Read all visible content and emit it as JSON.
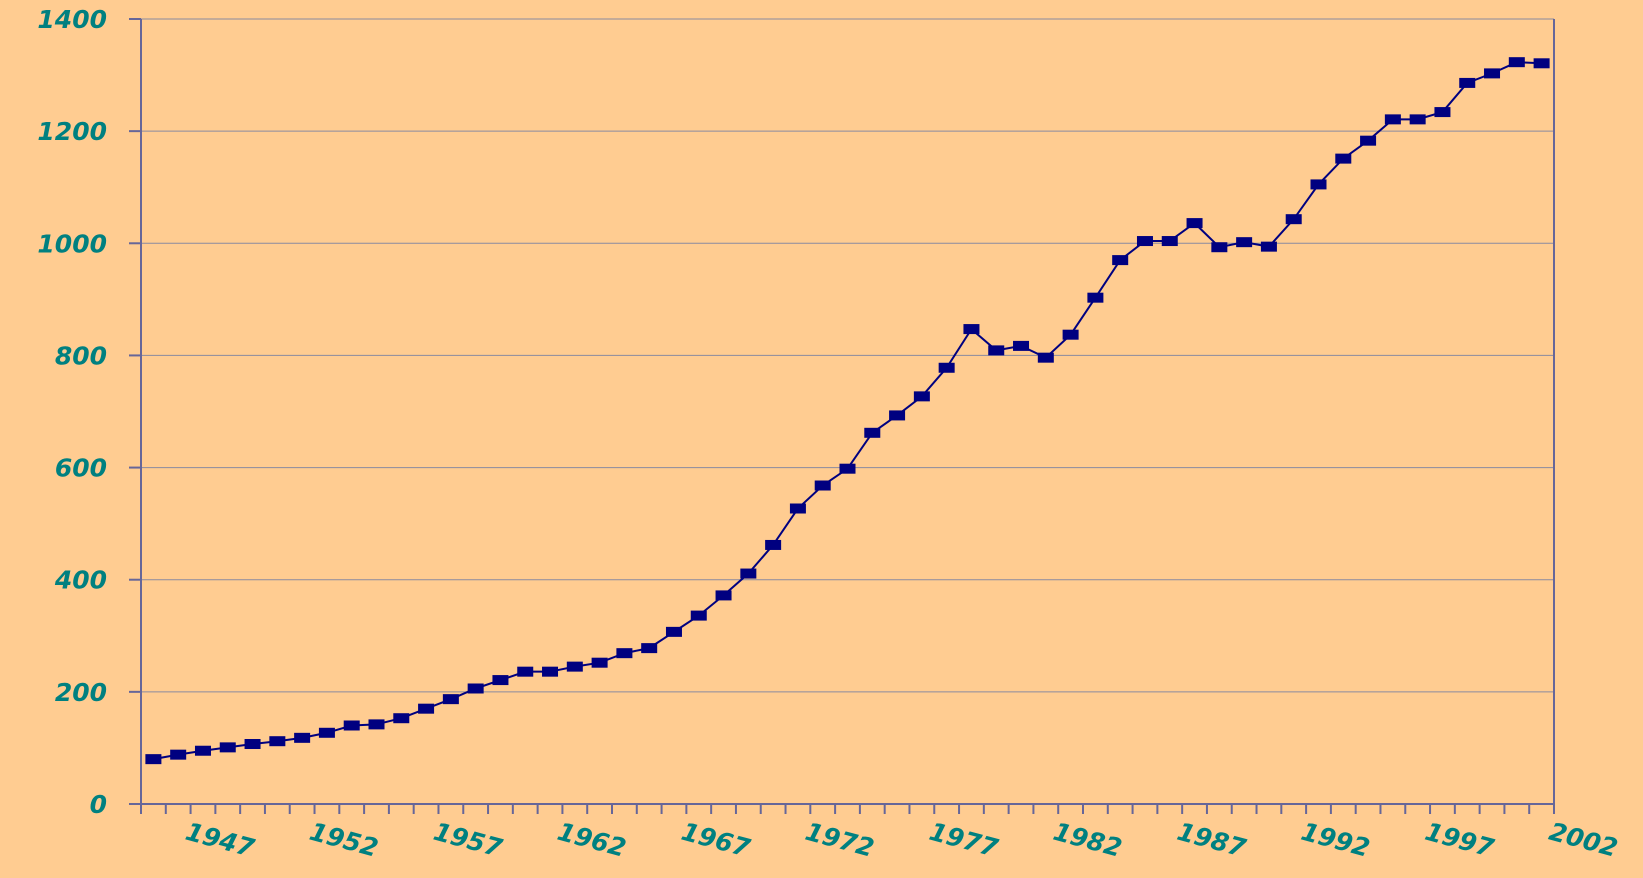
{
  "chart_data": {
    "type": "line",
    "categories": [
      null,
      "1947",
      null,
      null,
      null,
      null,
      "1952",
      null,
      null,
      null,
      null,
      "1957",
      null,
      null,
      null,
      null,
      "1962",
      null,
      null,
      null,
      null,
      "1967",
      null,
      null,
      null,
      null,
      "1972",
      null,
      null,
      null,
      null,
      "1977",
      null,
      null,
      null,
      null,
      "1982",
      null,
      null,
      null,
      null,
      "1987",
      null,
      null,
      null,
      null,
      "1992",
      null,
      null,
      null,
      null,
      "1997",
      null,
      null,
      null,
      null,
      "2002"
    ],
    "series": [
      {
        "color": "#000080",
        "values": [
          80,
          88,
          95,
          101,
          107,
          112,
          118,
          127,
          140,
          142,
          153,
          170,
          187,
          206,
          221,
          236,
          236,
          245,
          252,
          269,
          278,
          307,
          336,
          372,
          411,
          462,
          527,
          568,
          598,
          662,
          693,
          727,
          778,
          847,
          809,
          817,
          796,
          837,
          903,
          970,
          1004,
          1004,
          1036,
          993,
          1002,
          994,
          1043,
          1105,
          1151,
          1183,
          1221,
          1221,
          1234,
          1286,
          1303,
          1323,
          1321
        ]
      }
    ],
    "ylim": [
      0,
      1400
    ],
    "yticks": [
      0,
      200,
      400,
      600,
      800,
      1000,
      1200,
      1400
    ],
    "grid": true
  }
}
